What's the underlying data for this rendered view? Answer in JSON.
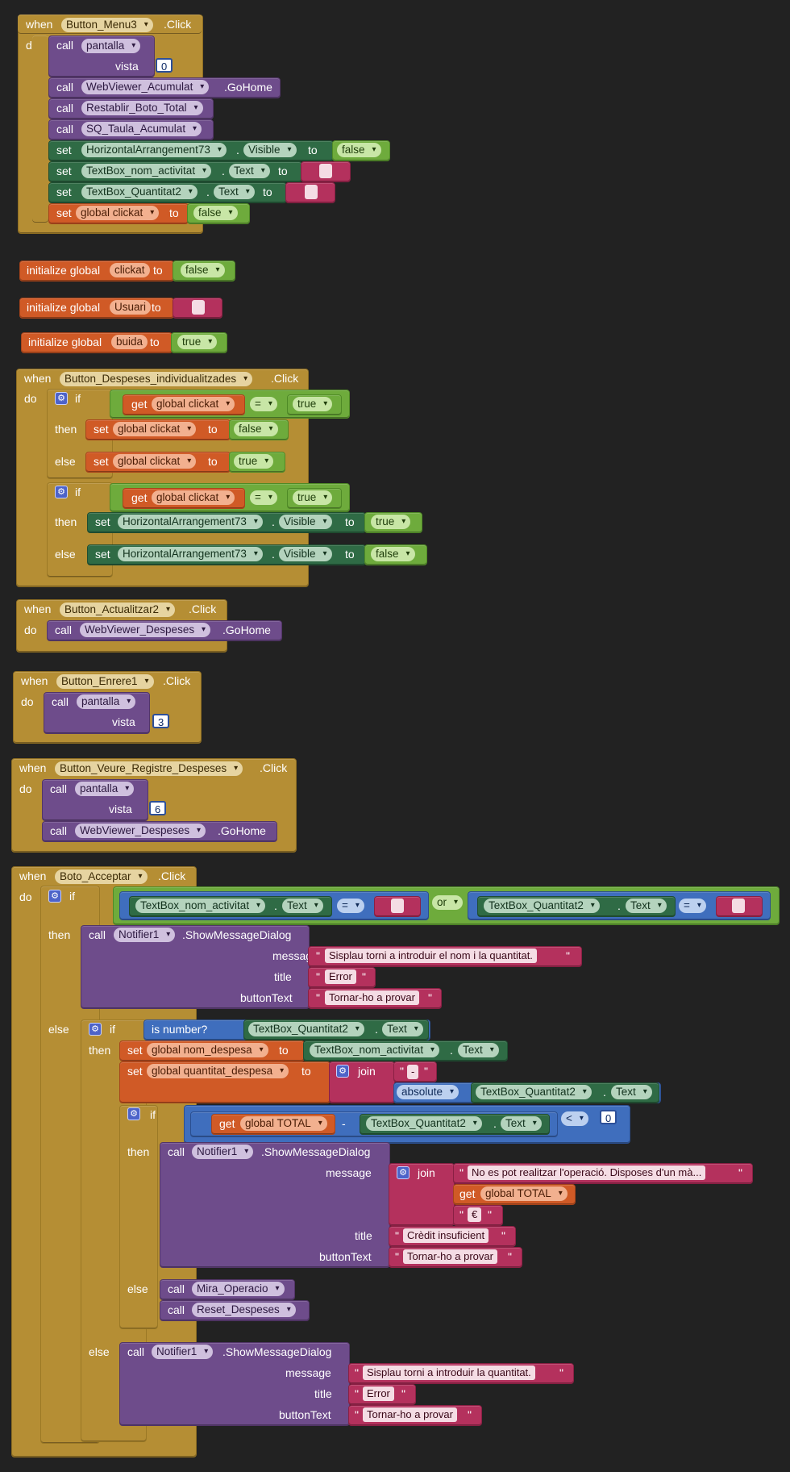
{
  "common": {
    "when": "when",
    "do": "do",
    "click": ".Click",
    "call": "call",
    "set": "set",
    "get": "get",
    "to": "to",
    "if": "if",
    "then": "then",
    "else": "else",
    "or": "or",
    "eq": "=",
    "lt": "<",
    "minus": "-",
    "dot": ".",
    "init": "initialize global",
    "join": "join",
    "is_number": "is number?",
    "absolute": "absolute",
    "gohome": ".GoHome",
    "show_dialog": ".ShowMessageDialog",
    "visible": "Visible",
    "text": "Text",
    "vista": "vista",
    "message": "message",
    "title": "title",
    "buttontext": "buttonText",
    "true": "true",
    "false": "false",
    "quote": "\"",
    "gear": "⚙"
  },
  "b1": {
    "event": "Button_Menu3",
    "pantalla": "pantalla",
    "vista_val": "0",
    "webviewer": "WebViewer_Acumulat",
    "restablir": "Restablir_Boto_Total",
    "sq": "SQ_Taula_Acumulat",
    "harr": "HorizontalArrangement73",
    "nom": "TextBox_nom_activitat",
    "quant": "TextBox_Quantitat2",
    "clickat": "global clickat"
  },
  "inits": [
    {
      "name": "clickat",
      "value": "false"
    },
    {
      "name": "Usuari",
      "value": ""
    },
    {
      "name": "buida",
      "value": "true"
    }
  ],
  "b2": {
    "event": "Button_Despeses_individualitzades",
    "clickat": "global clickat",
    "harr": "HorizontalArrangement73"
  },
  "b3": {
    "event": "Button_Actualitzar2",
    "webviewer": "WebViewer_Despeses"
  },
  "b4": {
    "event": "Button_Enrere1",
    "pantalla": "pantalla",
    "vista_val": "3"
  },
  "b5": {
    "event": "Button_Veure_Registre_Despeses",
    "pantalla": "pantalla",
    "vista_val": "6",
    "webviewer": "WebViewer_Despeses"
  },
  "b6": {
    "event": "Boto_Acceptar",
    "nom": "TextBox_nom_activitat",
    "quant": "TextBox_Quantitat2",
    "notifier": "Notifier1",
    "msg1": "Sisplau torni a introduir el nom i la quantitat.",
    "title1": "Error",
    "btn1": "Tornar-ho a provar",
    "nom_despesa": "global nom_despesa",
    "quantitat_despesa": "global quantitat_despesa",
    "dash": "-",
    "total": "global TOTAL",
    "zero": "0",
    "msg2": "No es pot realitzar l'operació. Disposes d'un mà...",
    "euro": "€",
    "title2": "Crèdit insuficient",
    "btn2": "Tornar-ho a provar",
    "mira": "Mira_Operacio",
    "reset": "Reset_Despeses",
    "msg3": "Sisplau torni a introduir la quantitat.",
    "title3": "Error",
    "btn3": "Tornar-ho a provar"
  }
}
